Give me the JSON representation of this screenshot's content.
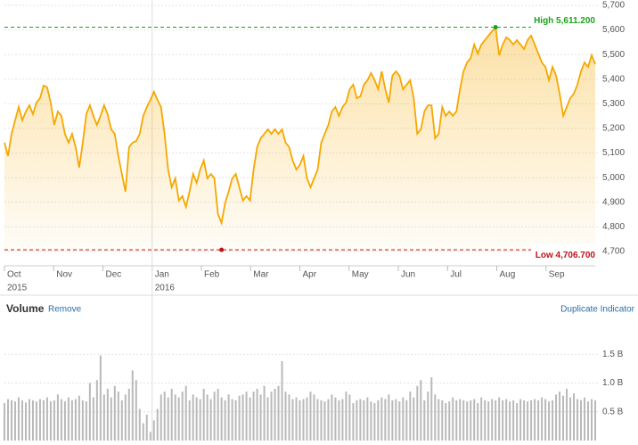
{
  "chart_data": [
    {
      "type": "line",
      "color": "#f5a800",
      "x_ticks": [
        "Oct",
        "Nov",
        "Dec",
        "Jan",
        "Feb",
        "Mar",
        "Apr",
        "May",
        "Jun",
        "Jul",
        "Aug",
        "Sep"
      ],
      "x_tick_years": [
        "2015",
        null,
        null,
        "2016",
        null,
        null,
        null,
        null,
        null,
        null,
        null,
        null
      ],
      "ylim": [
        4700,
        5700
      ],
      "yticks": [
        {
          "value": 4700,
          "label": "4,700"
        },
        {
          "value": 4800,
          "label": "4,800"
        },
        {
          "value": 4900,
          "label": "4,900"
        },
        {
          "value": 5000,
          "label": "5,000"
        },
        {
          "value": 5100,
          "label": "5,100"
        },
        {
          "value": 5200,
          "label": "5,200"
        },
        {
          "value": 5300,
          "label": "5,300"
        },
        {
          "value": 5400,
          "label": "5,400"
        },
        {
          "value": 5500,
          "label": "5,500"
        },
        {
          "value": 5600,
          "label": "5,600"
        },
        {
          "value": 5700,
          "label": "5,700"
        }
      ],
      "grid": true,
      "annotations": [
        {
          "text": "High 5,611.200",
          "value": 5611.2,
          "color": "#1aa31a"
        },
        {
          "text": "Low 4,706.700",
          "value": 4706.7,
          "color": "#c0101a"
        }
      ],
      "values": [
        5142,
        5088,
        5178,
        5233,
        5287,
        5233,
        5269,
        5294,
        5258,
        5305,
        5323,
        5374,
        5367,
        5305,
        5214,
        5269,
        5251,
        5178,
        5142,
        5178,
        5124,
        5041,
        5142,
        5258,
        5294,
        5251,
        5214,
        5251,
        5294,
        5258,
        5196,
        5178,
        5088,
        5015,
        4943,
        5124,
        5142,
        5149,
        5178,
        5251,
        5287,
        5316,
        5349,
        5316,
        5287,
        5178,
        5033,
        4961,
        4997,
        4907,
        4925,
        4881,
        4943,
        5015,
        4979,
        5033,
        5070,
        4997,
        5015,
        4997,
        4852,
        4816,
        4896,
        4943,
        4997,
        5015,
        4961,
        4907,
        4925,
        4907,
        5033,
        5124,
        5160,
        5178,
        5196,
        5178,
        5196,
        5178,
        5196,
        5142,
        5124,
        5070,
        5033,
        5051,
        5088,
        4997,
        4961,
        4997,
        5033,
        5142,
        5178,
        5214,
        5269,
        5287,
        5251,
        5287,
        5305,
        5359,
        5378,
        5323,
        5330,
        5378,
        5396,
        5425,
        5396,
        5359,
        5432,
        5359,
        5305,
        5414,
        5432,
        5414,
        5359,
        5378,
        5396,
        5323,
        5178,
        5196,
        5269,
        5294,
        5294,
        5160,
        5178,
        5287,
        5251,
        5269,
        5251,
        5269,
        5359,
        5432,
        5468,
        5486,
        5541,
        5504,
        5541,
        5559,
        5577,
        5595,
        5611,
        5497,
        5541,
        5570,
        5559,
        5541,
        5559,
        5541,
        5522,
        5559,
        5577,
        5541,
        5504,
        5468,
        5450,
        5396,
        5450,
        5414,
        5341,
        5251,
        5287,
        5323,
        5341,
        5378,
        5432,
        5468,
        5450,
        5497,
        5461
      ]
    },
    {
      "type": "bar",
      "title": "Volume",
      "remove_link": "Remove",
      "duplicate_link": "Duplicate Indicator",
      "color": "#b9b9b9",
      "ylim": [
        0,
        2
      ],
      "yticks": [
        {
          "value": 0.5,
          "label": "0.5 B"
        },
        {
          "value": 1.0,
          "label": "1.0 B"
        },
        {
          "value": 1.5,
          "label": "1.5 B"
        }
      ],
      "grid": true,
      "values": [
        0.65,
        0.72,
        0.7,
        0.68,
        0.75,
        0.7,
        0.66,
        0.72,
        0.7,
        0.68,
        0.72,
        0.7,
        0.75,
        0.68,
        0.7,
        0.8,
        0.72,
        0.68,
        0.75,
        0.7,
        0.72,
        0.78,
        0.7,
        0.68,
        1.0,
        0.75,
        1.05,
        1.48,
        0.8,
        0.9,
        0.75,
        0.95,
        0.85,
        0.7,
        0.8,
        0.9,
        1.22,
        1.05,
        0.55,
        0.3,
        0.45,
        0.15,
        0.35,
        0.55,
        0.8,
        0.85,
        0.75,
        0.9,
        0.8,
        0.75,
        0.85,
        0.95,
        0.7,
        0.8,
        0.75,
        0.72,
        0.9,
        0.8,
        0.72,
        0.85,
        0.9,
        0.75,
        0.7,
        0.8,
        0.72,
        0.7,
        0.78,
        0.8,
        0.85,
        0.75,
        0.85,
        0.9,
        0.8,
        0.95,
        0.75,
        0.85,
        0.9,
        0.95,
        1.38,
        0.85,
        0.8,
        0.72,
        0.75,
        0.7,
        0.72,
        0.75,
        0.85,
        0.8,
        0.72,
        0.7,
        0.68,
        0.72,
        0.8,
        0.75,
        0.7,
        0.72,
        0.85,
        0.8,
        0.65,
        0.7,
        0.72,
        0.7,
        0.75,
        0.68,
        0.65,
        0.7,
        0.75,
        0.72,
        0.8,
        0.7,
        0.72,
        0.68,
        0.75,
        0.7,
        0.85,
        0.75,
        0.95,
        1.05,
        0.7,
        0.85,
        1.1,
        0.8,
        0.72,
        0.7,
        0.65,
        0.68,
        0.75,
        0.7,
        0.72,
        0.7,
        0.68,
        0.7,
        0.72,
        0.65,
        0.75,
        0.7,
        0.68,
        0.72,
        0.7,
        0.75,
        0.7,
        0.72,
        0.68,
        0.7,
        0.65,
        0.72,
        0.7,
        0.68,
        0.7,
        0.72,
        0.7,
        0.75,
        0.72,
        0.68,
        0.7,
        0.8,
        0.85,
        0.78,
        0.9,
        0.75,
        0.82,
        0.72,
        0.7,
        0.75,
        0.68,
        0.72,
        0.7
      ]
    }
  ]
}
